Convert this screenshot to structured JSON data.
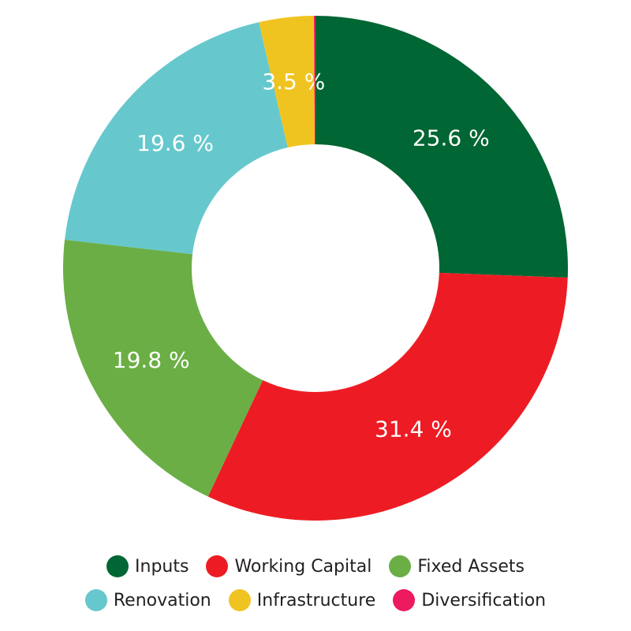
{
  "chart_data": {
    "type": "pie",
    "variant": "donut",
    "title": "",
    "slices": [
      {
        "name": "Inputs",
        "value": 25.6,
        "label": "25.6 %",
        "color": "#006633"
      },
      {
        "name": "Working Capital",
        "value": 31.4,
        "label": "31.4 %",
        "color": "#ed1c24"
      },
      {
        "name": "Fixed Assets",
        "value": 19.8,
        "label": "19.8 %",
        "color": "#6aae45"
      },
      {
        "name": "Renovation",
        "value": 19.6,
        "label": "19.6 %",
        "color": "#66c8cc"
      },
      {
        "name": "Infrastructure",
        "value": 3.5,
        "label": "3.5 %",
        "color": "#f0c420"
      },
      {
        "name": "Diversification",
        "value": 0.1,
        "label": "",
        "color": "#ed1a5f"
      }
    ],
    "legend_position": "bottom"
  }
}
